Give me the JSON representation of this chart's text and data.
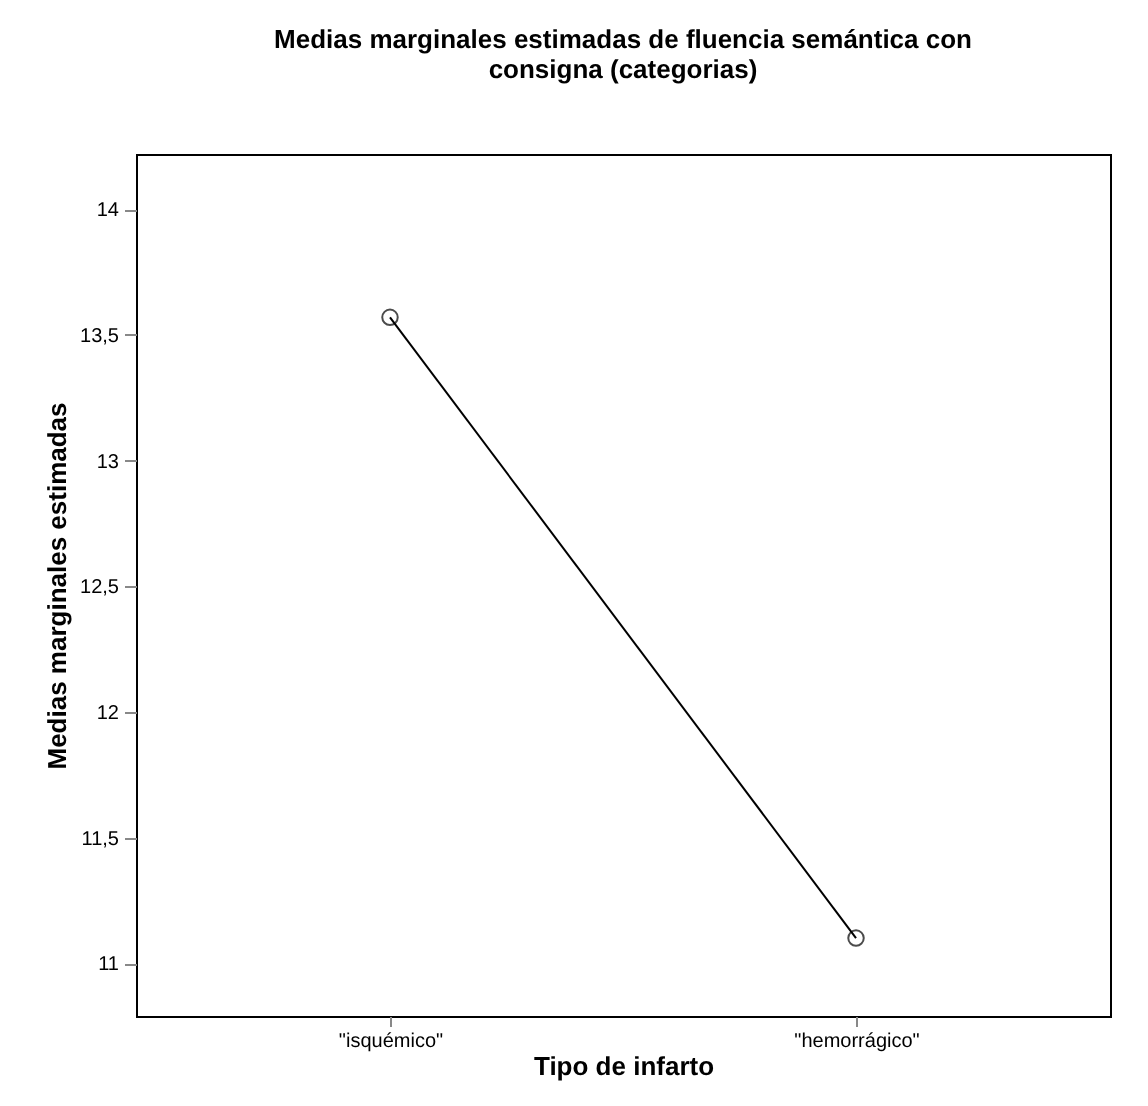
{
  "chart_data": {
    "type": "line",
    "title": "Medias marginales estimadas de fluencia semántica con consigna (categorias)",
    "xlabel": "Tipo de infarto",
    "ylabel": "Medias marginales estimadas",
    "categories": [
      "\"isquémico\"",
      "\"hemorrágico\""
    ],
    "series": [
      {
        "color": "#000000",
        "values": [
          13.57,
          11.1
        ]
      }
    ],
    "ylim": [
      10.79,
      14.22
    ],
    "yticks": [
      {
        "value": 11,
        "label": "11"
      },
      {
        "value": 11.5,
        "label": "11,5"
      },
      {
        "value": 12,
        "label": "12"
      },
      {
        "value": 12.5,
        "label": "12,5"
      },
      {
        "value": 13,
        "label": "13"
      },
      {
        "value": 13.5,
        "label": "13,5"
      },
      {
        "value": 14,
        "label": "14"
      }
    ],
    "marker": "circle",
    "line_style": "solid",
    "grid": false
  }
}
